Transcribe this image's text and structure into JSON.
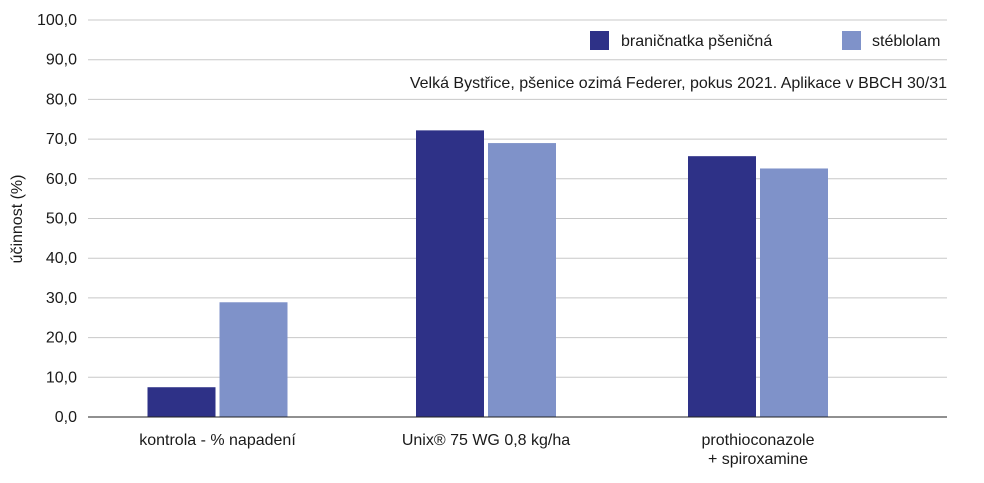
{
  "chart_data": {
    "type": "bar",
    "categories": [
      [
        "kontrola - % napadení"
      ],
      [
        "Unix® 75 WG 0,8 kg/ha"
      ],
      [
        "prothioconazole",
        "+ spiroxamine"
      ]
    ],
    "series": [
      {
        "name": "braničnatka pšeničná",
        "color": "#2e3187",
        "values": [
          7.5,
          72.2,
          65.7
        ]
      },
      {
        "name": "stéblolam",
        "color": "#7f92c9",
        "values": [
          28.9,
          69.0,
          62.6
        ]
      }
    ],
    "ylabel": "účinnost (%)",
    "ylim": [
      0,
      100
    ],
    "yticks": [
      "0,0",
      "10,0",
      "20,0",
      "30,0",
      "40,0",
      "50,0",
      "60,0",
      "70,0",
      "80,0",
      "90,0",
      "100,0"
    ],
    "grid": true,
    "legend_position": "top-right",
    "annotation": "Velká Bystřice, pšenice ozimá Federer, pokus 2021. Aplikace v BBCH 30/31"
  }
}
